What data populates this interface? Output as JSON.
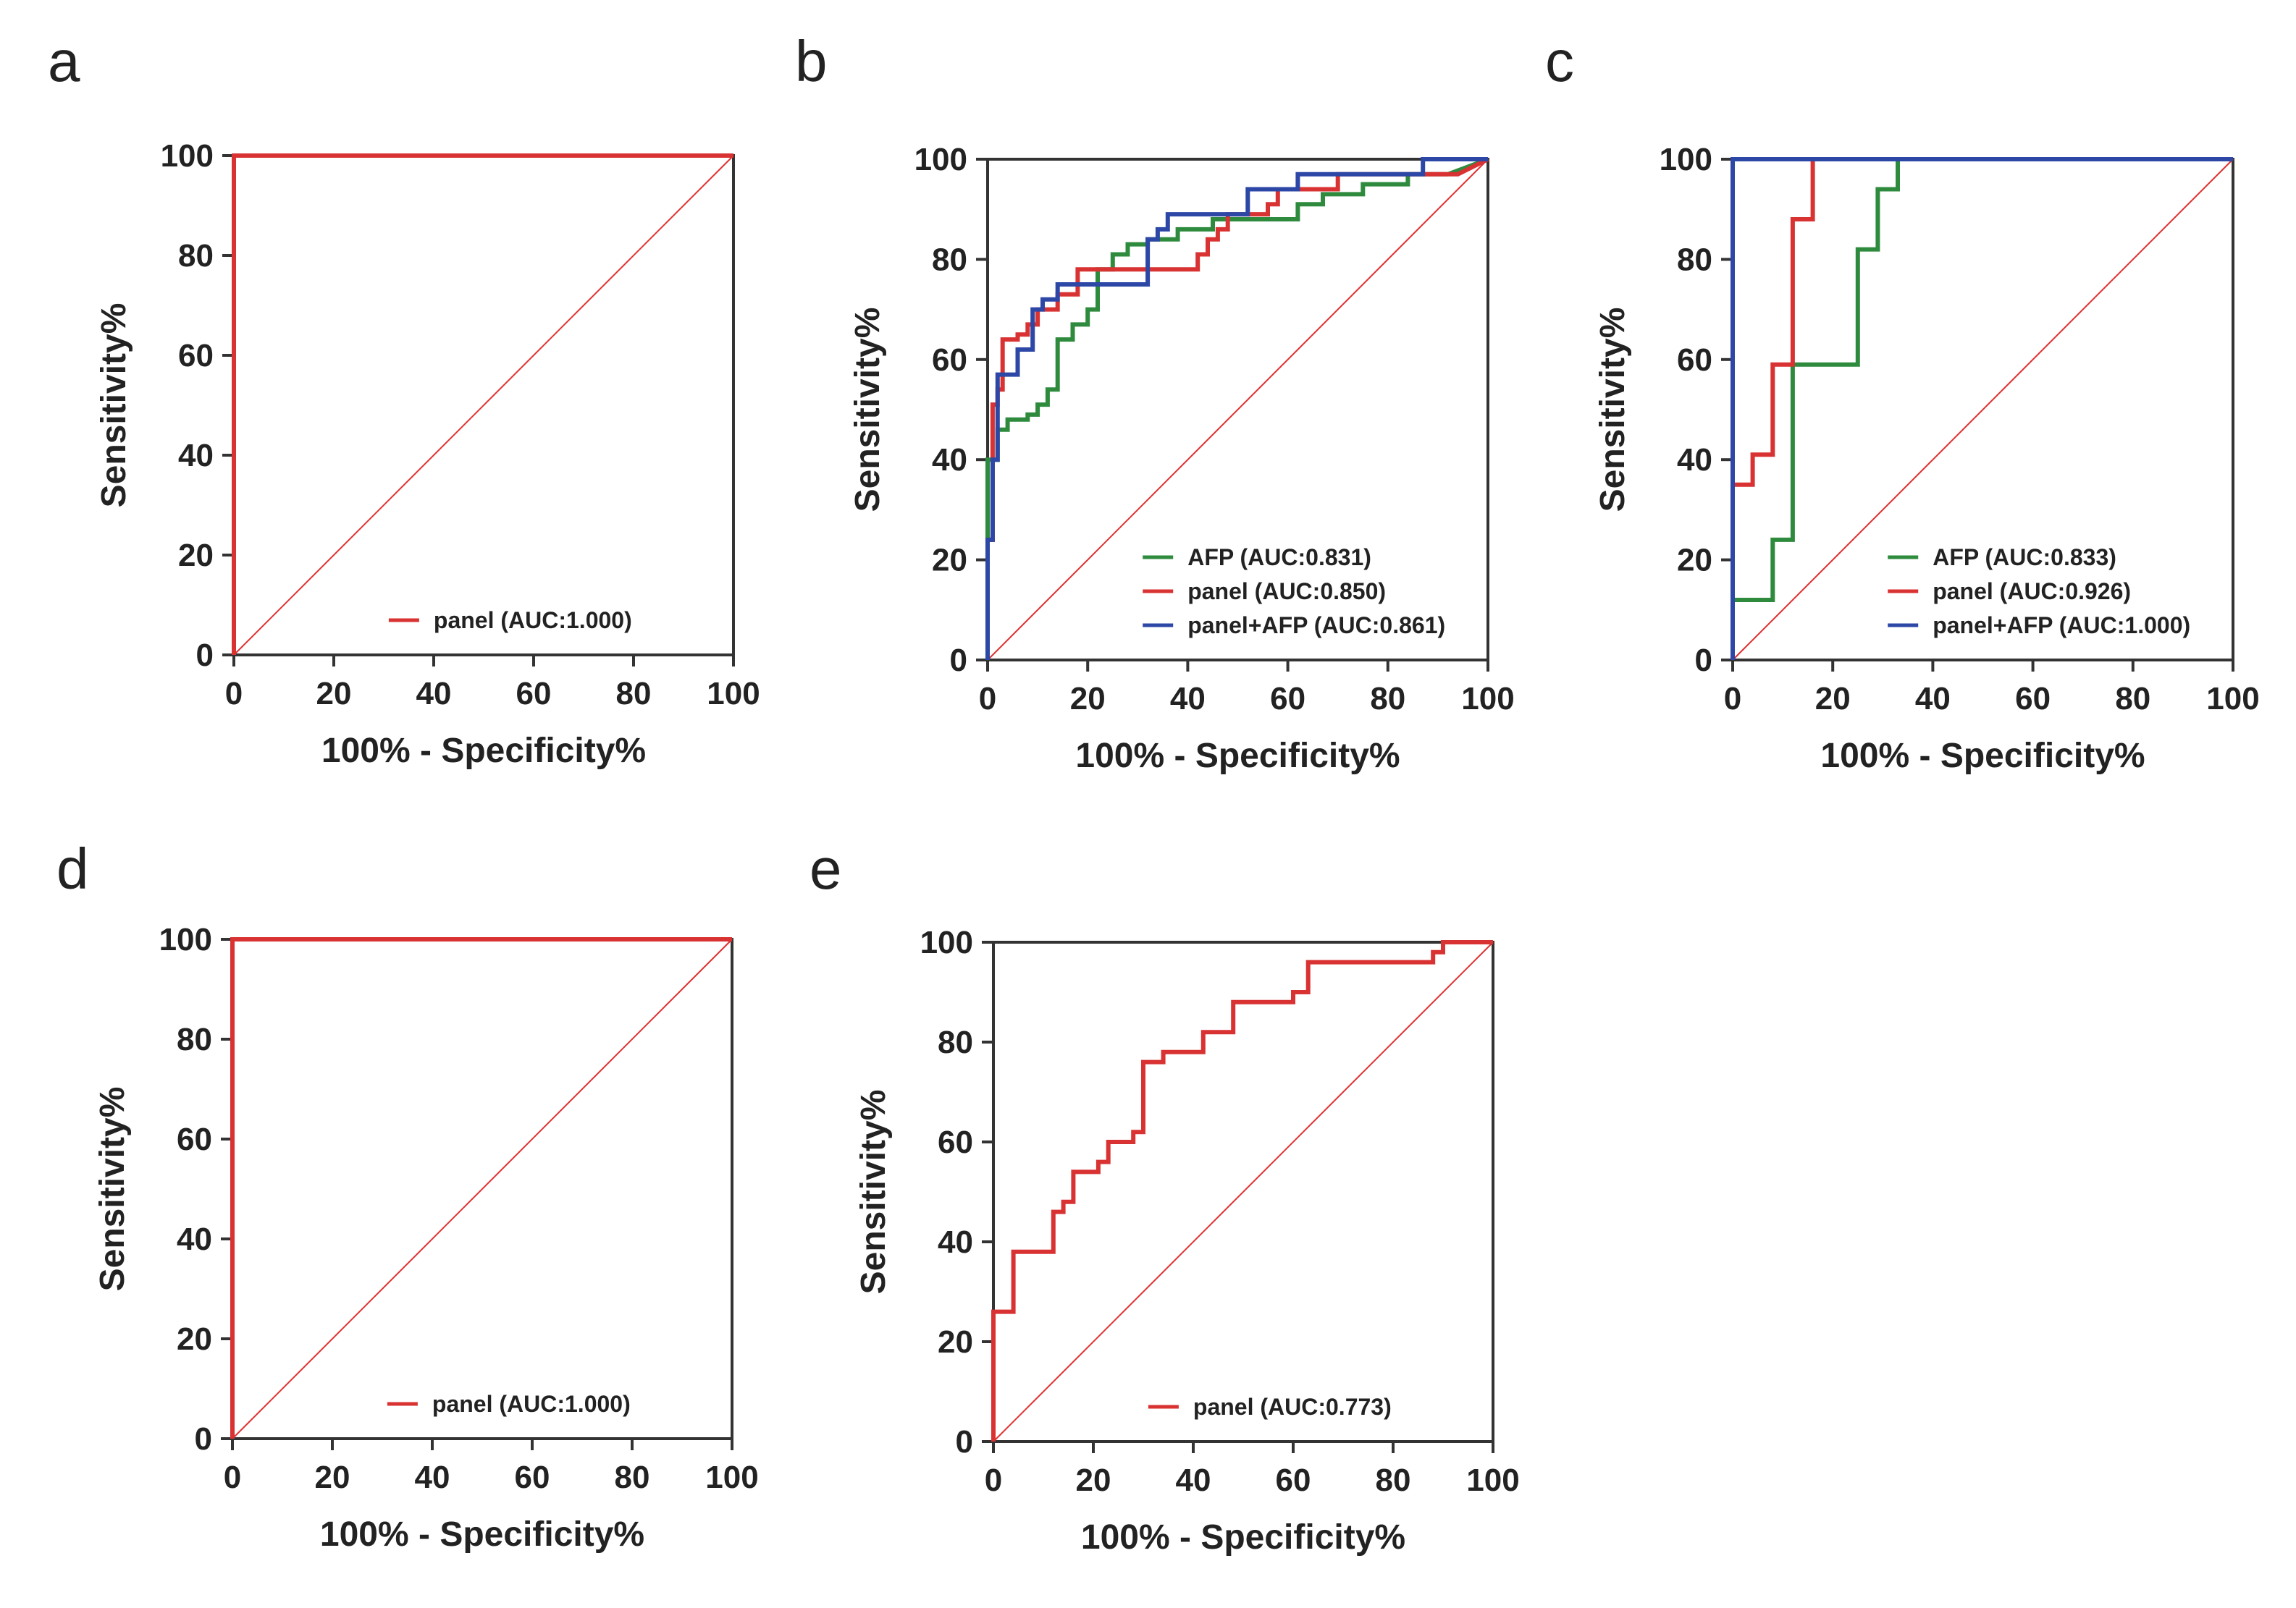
{
  "chart_data": [
    {
      "panel": "a",
      "type": "line",
      "xlabel": "100% - Specificity%",
      "ylabel": "Sensitivity%",
      "xlim": [
        0,
        100
      ],
      "ylim": [
        0,
        100
      ],
      "xticks": [
        0,
        20,
        40,
        60,
        80,
        100
      ],
      "yticks": [
        0,
        20,
        40,
        60,
        80,
        100
      ],
      "reference_line": {
        "x": [
          0,
          100
        ],
        "y": [
          0,
          100
        ],
        "color": "#e03030"
      },
      "series": [
        {
          "name": "panel (AUC:1.000)",
          "color": "#d93232",
          "x": [
            0,
            0,
            100
          ],
          "y": [
            0,
            100,
            100
          ]
        }
      ]
    },
    {
      "panel": "b",
      "type": "line",
      "xlabel": "100% - Specificity%",
      "ylabel": "Sensitivity%",
      "xlim": [
        0,
        100
      ],
      "ylim": [
        0,
        100
      ],
      "xticks": [
        0,
        20,
        40,
        60,
        80,
        100
      ],
      "yticks": [
        0,
        20,
        40,
        60,
        80,
        100
      ],
      "reference_line": {
        "x": [
          0,
          100
        ],
        "y": [
          0,
          100
        ],
        "color": "#e03030"
      },
      "series": [
        {
          "name": "AFP (AUC:0.831)",
          "color": "#2e8b3e",
          "x": [
            0,
            0,
            2,
            2,
            4,
            4,
            8,
            8,
            10,
            10,
            12,
            12,
            14,
            14,
            17,
            17,
            20,
            20,
            22,
            22,
            25,
            25,
            28,
            28,
            32,
            32,
            38,
            38,
            45,
            45,
            55,
            55,
            62,
            62,
            67,
            67,
            75,
            75,
            84,
            84,
            88,
            88,
            92,
            92,
            100
          ],
          "y": [
            24,
            40,
            40,
            46,
            46,
            48,
            48,
            49,
            49,
            51,
            51,
            54,
            54,
            64,
            64,
            67,
            67,
            70,
            70,
            78,
            78,
            81,
            81,
            83,
            83,
            84,
            84,
            86,
            86,
            88,
            88,
            88,
            88,
            91,
            91,
            93,
            93,
            95,
            95,
            97,
            97,
            97,
            97,
            97,
            100
          ]
        },
        {
          "name": "panel (AUC:0.850)",
          "color": "#d93232",
          "x": [
            0,
            0,
            1,
            1,
            2,
            2,
            3,
            3,
            6,
            6,
            8,
            8,
            10,
            10,
            14,
            14,
            18,
            18,
            30,
            30,
            42,
            42,
            44,
            44,
            46,
            46,
            48,
            48,
            56,
            56,
            58,
            58,
            66,
            66,
            70,
            70,
            76,
            76,
            94,
            94,
            100
          ],
          "y": [
            0,
            24,
            24,
            51,
            51,
            54,
            54,
            64,
            64,
            65,
            65,
            67,
            67,
            70,
            70,
            73,
            73,
            78,
            78,
            78,
            78,
            81,
            81,
            84,
            84,
            86,
            86,
            89,
            89,
            91,
            91,
            94,
            94,
            94,
            94,
            97,
            97,
            97,
            97,
            97,
            100
          ]
        },
        {
          "name": "panel+AFP (AUC:0.861)",
          "color": "#2c47a6",
          "x": [
            0,
            0,
            1,
            1,
            2,
            2,
            3,
            3,
            6,
            6,
            9,
            9,
            11,
            11,
            14,
            14,
            22,
            22,
            32,
            32,
            34,
            34,
            36,
            36,
            52,
            52,
            58,
            58,
            62,
            62,
            72,
            72,
            87,
            87,
            100
          ],
          "y": [
            0,
            24,
            24,
            40,
            40,
            57,
            57,
            57,
            57,
            62,
            62,
            70,
            70,
            72,
            72,
            75,
            75,
            75,
            75,
            84,
            84,
            86,
            86,
            89,
            89,
            94,
            94,
            94,
            94,
            97,
            97,
            97,
            97,
            100,
            100
          ]
        }
      ]
    },
    {
      "panel": "c",
      "type": "line",
      "xlabel": "100% - Specificity%",
      "ylabel": "Sensitivity%",
      "xlim": [
        0,
        100
      ],
      "ylim": [
        0,
        100
      ],
      "xticks": [
        0,
        20,
        40,
        60,
        80,
        100
      ],
      "yticks": [
        0,
        20,
        40,
        60,
        80,
        100
      ],
      "reference_line": {
        "x": [
          0,
          100
        ],
        "y": [
          0,
          100
        ],
        "color": "#e03030"
      },
      "series": [
        {
          "name": "AFP (AUC:0.833)",
          "color": "#2e8b3e",
          "x": [
            0,
            0,
            8,
            8,
            12,
            12,
            25,
            25,
            29,
            29,
            33,
            33,
            100
          ],
          "y": [
            0,
            12,
            12,
            24,
            24,
            59,
            59,
            82,
            82,
            94,
            94,
            100,
            100
          ]
        },
        {
          "name": "panel (AUC:0.926)",
          "color": "#d93232",
          "x": [
            0,
            0,
            4,
            4,
            6,
            6,
            8,
            8,
            12,
            12,
            16,
            16,
            100
          ],
          "y": [
            0,
            35,
            35,
            41,
            41,
            41,
            41,
            59,
            59,
            88,
            88,
            100,
            100
          ]
        },
        {
          "name": "panel+AFP (AUC:1.000)",
          "color": "#2c47a6",
          "x": [
            0,
            0,
            100
          ],
          "y": [
            0,
            100,
            100
          ]
        }
      ]
    },
    {
      "panel": "d",
      "type": "line",
      "xlabel": "100% - Specificity%",
      "ylabel": "Sensitivity%",
      "xlim": [
        0,
        100
      ],
      "ylim": [
        0,
        100
      ],
      "xticks": [
        0,
        20,
        40,
        60,
        80,
        100
      ],
      "yticks": [
        0,
        20,
        40,
        60,
        80,
        100
      ],
      "reference_line": {
        "x": [
          0,
          100
        ],
        "y": [
          0,
          100
        ],
        "color": "#e03030"
      },
      "series": [
        {
          "name": "panel (AUC:1.000)",
          "color": "#d93232",
          "x": [
            0,
            0,
            100
          ],
          "y": [
            0,
            100,
            100
          ]
        }
      ]
    },
    {
      "panel": "e",
      "type": "line",
      "xlabel": "100% - Specificity%",
      "ylabel": "Sensitivity%",
      "xlim": [
        0,
        100
      ],
      "ylim": [
        0,
        100
      ],
      "xticks": [
        0,
        20,
        40,
        60,
        80,
        100
      ],
      "yticks": [
        0,
        20,
        40,
        60,
        80,
        100
      ],
      "reference_line": {
        "x": [
          0,
          100
        ],
        "y": [
          0,
          100
        ],
        "color": "#e03030"
      },
      "series": [
        {
          "name": "panel (AUC:0.773)",
          "color": "#d93232",
          "x": [
            0,
            0,
            4,
            4,
            12,
            12,
            14,
            14,
            16,
            16,
            21,
            21,
            23,
            23,
            28,
            28,
            30,
            30,
            34,
            34,
            42,
            42,
            48,
            48,
            60,
            60,
            63,
            63,
            88,
            88,
            90,
            90,
            100
          ],
          "y": [
            0,
            26,
            26,
            38,
            38,
            46,
            46,
            48,
            48,
            54,
            54,
            56,
            56,
            60,
            60,
            62,
            62,
            76,
            76,
            78,
            78,
            82,
            82,
            88,
            88,
            90,
            90,
            96,
            96,
            98,
            98,
            100,
            100
          ]
        }
      ]
    }
  ]
}
